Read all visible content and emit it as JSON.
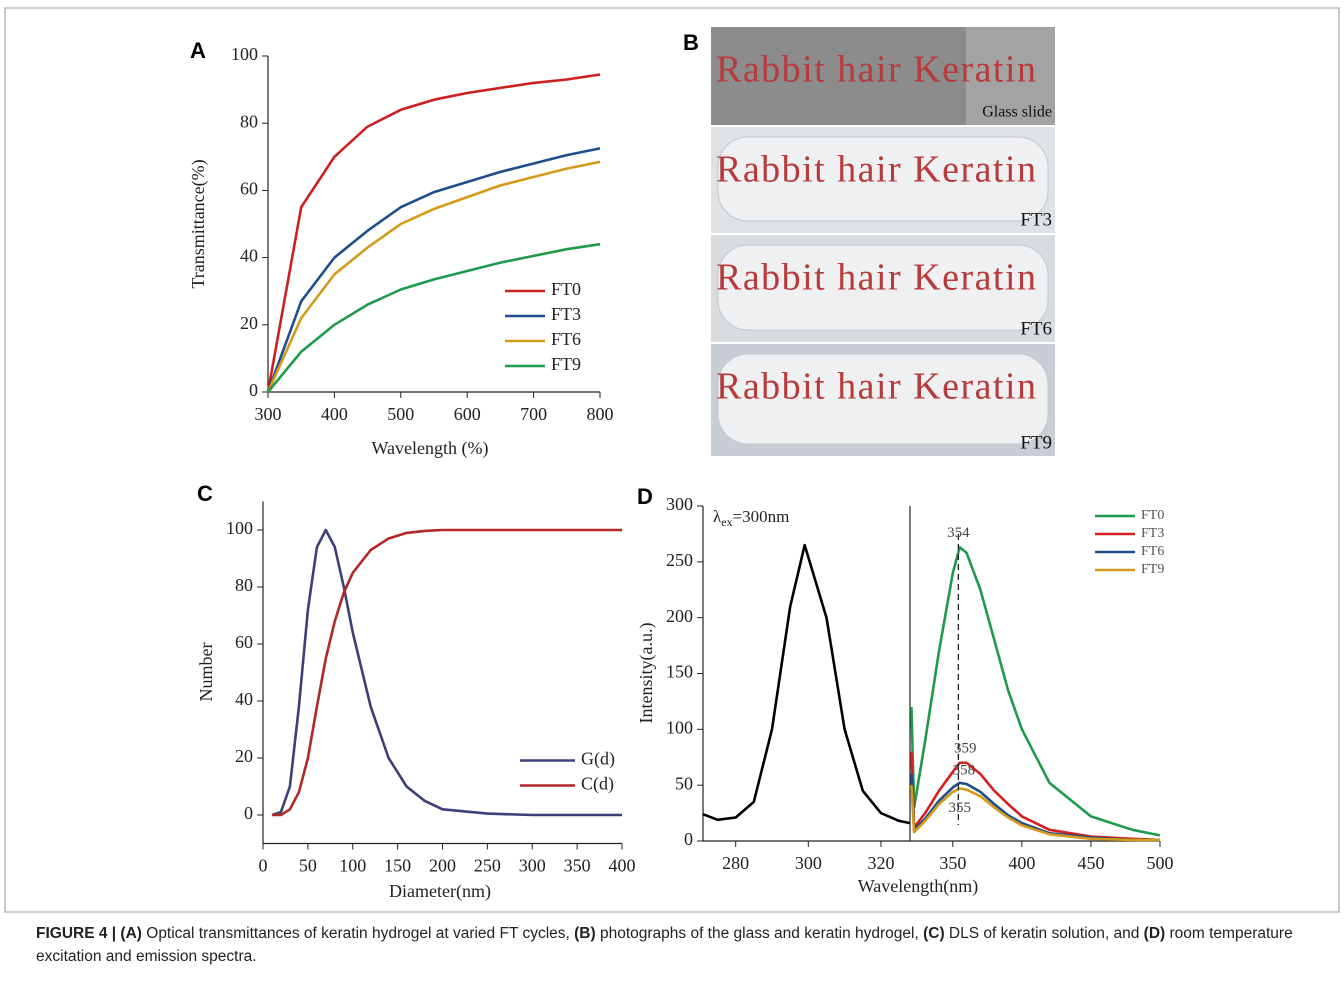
{
  "chart_data": [
    {
      "type": "line",
      "panel_label": "A",
      "x_label": "Wavelength (%)",
      "y_label": "Transmittance(%)",
      "xlim": [
        300,
        800
      ],
      "xticks": [
        300,
        400,
        500,
        600,
        700,
        800
      ],
      "ylim": [
        0,
        100
      ],
      "yticks": [
        0,
        20,
        40,
        60,
        80,
        100
      ],
      "x": [
        300,
        350,
        400,
        450,
        500,
        550,
        600,
        650,
        700,
        750,
        800
      ],
      "series": [
        {
          "name": "FT0",
          "color": "#cc1f1f",
          "values": [
            0,
            55,
            70,
            79,
            84,
            87,
            89,
            90.5,
            92,
            93,
            94.5
          ]
        },
        {
          "name": "FT3",
          "color": "#1f4e8c",
          "values": [
            0,
            27,
            40,
            48,
            55,
            59.5,
            62.5,
            65.5,
            68,
            70.5,
            72.5
          ]
        },
        {
          "name": "FT6",
          "color": "#d49b1a",
          "values": [
            0,
            22,
            35,
            43,
            50,
            54.5,
            58,
            61.5,
            64,
            66.5,
            68.5
          ]
        },
        {
          "name": "FT9",
          "color": "#1f9a4a",
          "values": [
            0,
            12,
            20,
            26,
            30.5,
            33.5,
            36,
            38.5,
            40.5,
            42.5,
            44
          ]
        }
      ],
      "legend": "lower right"
    },
    {
      "type": "line",
      "panel_label": "C",
      "x_label": "Diameter(nm)",
      "y_label": "Number",
      "xlim": [
        0,
        400
      ],
      "xticks": [
        0,
        50,
        100,
        150,
        200,
        250,
        300,
        350,
        400
      ],
      "ylim": [
        -10,
        110
      ],
      "yticks": [
        0,
        20,
        40,
        60,
        80,
        100
      ],
      "x": [
        10,
        20,
        30,
        40,
        50,
        60,
        70,
        80,
        90,
        100,
        120,
        140,
        160,
        180,
        200,
        250,
        300,
        350,
        400
      ],
      "series": [
        {
          "name": "G(d)",
          "color": "#3d3f78",
          "values": [
            0,
            1,
            10,
            38,
            72,
            94,
            100,
            94,
            80,
            64,
            38,
            20,
            10,
            5,
            2,
            0.5,
            0,
            0,
            0
          ]
        },
        {
          "name": "C(d)",
          "color": "#b02828",
          "values": [
            0,
            0,
            2,
            8,
            20,
            38,
            55,
            68,
            78,
            85,
            93,
            97,
            99,
            99.7,
            100,
            100,
            100,
            100,
            100
          ]
        }
      ],
      "legend": "lower right"
    },
    {
      "type": "line",
      "panel_label": "D",
      "x_label": "Wavelength(nm)",
      "y_label": "Intensity(a.u.)",
      "ylim": [
        0,
        300
      ],
      "yticks": [
        0,
        50,
        100,
        150,
        200,
        250,
        300
      ],
      "subplots": [
        {
          "xlim": [
            271,
            328
          ],
          "xticks": [
            280,
            300,
            320
          ],
          "x": [
            271,
            275,
            280,
            285,
            290,
            295,
            299,
            305,
            310,
            315,
            320,
            325,
            328
          ],
          "series": [
            {
              "color": "#000000",
              "values": [
                24,
                19,
                21,
                35,
                100,
                210,
                265,
                200,
                100,
                45,
                25,
                18,
                16
              ]
            }
          ],
          "annotation": {
            "symbol": "λ",
            "subscript": "ex",
            "text": "=300nm"
          }
        },
        {
          "xlim": [
            319,
            500
          ],
          "xticks": [
            350,
            400,
            450,
            500
          ],
          "x": [
            320,
            322,
            330,
            340,
            350,
            355,
            360,
            370,
            380,
            390,
            400,
            420,
            450,
            480,
            500
          ],
          "series": [
            {
              "name": "FT0",
              "color": "#1f9a4a",
              "values": [
                120,
                30,
                90,
                170,
                240,
                263,
                258,
                225,
                180,
                135,
                100,
                52,
                22,
                10,
                5
              ]
            },
            {
              "name": "FT3",
              "color": "#d42020",
              "values": [
                80,
                12,
                25,
                45,
                62,
                70,
                70,
                60,
                45,
                33,
                22,
                10,
                4,
                2,
                1
              ]
            },
            {
              "name": "FT6",
              "color": "#1f4e8c",
              "values": [
                60,
                10,
                20,
                36,
                48,
                52,
                51,
                44,
                33,
                23,
                16,
                7,
                3,
                1,
                1
              ]
            },
            {
              "name": "FT9",
              "color": "#d49b1a",
              "values": [
                50,
                8,
                18,
                33,
                44,
                47,
                46,
                40,
                30,
                21,
                14,
                6,
                2,
                1,
                1
              ]
            }
          ],
          "peak_labels": [
            354,
            359,
            358,
            355
          ]
        }
      ],
      "legend": "upper right"
    }
  ],
  "photo": {
    "panel_label": "B",
    "strips": [
      {
        "text": "Rabbit hair Keratin",
        "label": "Glass slide"
      },
      {
        "text": "Rabbit hair Keratin",
        "label": "FT3"
      },
      {
        "text": "Rabbit hair Keratin",
        "label": "FT6"
      },
      {
        "text": "Rabbit hair Keratin",
        "label": "FT9"
      }
    ]
  },
  "caption": [
    {
      "text": "FIGURE 4 | (A)",
      "bold": true
    },
    {
      "text": " Optical transmittances of keratin hydrogel at varied FT cycles, ",
      "bold": false
    },
    {
      "text": "(B)",
      "bold": true
    },
    {
      "text": " photographs of the glass and keratin hydrogel, ",
      "bold": false
    },
    {
      "text": "(C)",
      "bold": true
    },
    {
      "text": " DLS of keratin solution, and ",
      "bold": false
    },
    {
      "text": "(D)",
      "bold": true
    },
    {
      "text": " room temperature excitation and emission spectra.",
      "bold": false
    }
  ]
}
